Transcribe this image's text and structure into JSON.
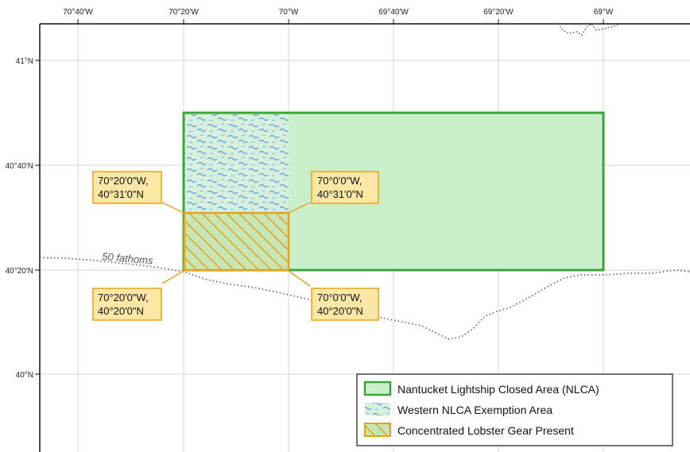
{
  "map": {
    "lon_ticks": [
      "70°40'W",
      "70°20'W",
      "70°W",
      "69°40'W",
      "69°20'W",
      "69°W"
    ],
    "lat_ticks": [
      "41°N",
      "40°40'N",
      "40°20'N",
      "40°N"
    ],
    "contour_label": "50 fathoms",
    "callouts": {
      "nw": [
        "70°20'0\"W,",
        "40°31'0\"N"
      ],
      "ne": [
        "70°0'0\"W,",
        "40°31'0\"N"
      ],
      "sw": [
        "70°20'0\"W,",
        "40°20'0\"N"
      ],
      "se": [
        "70°0'0\"W,",
        "40°20'0\"N"
      ]
    },
    "legend": {
      "items": [
        "Nantucket Lightship Closed Area (NLCA)",
        "Western NLCA Exemption Area",
        "Concentrated Lobster Gear Present"
      ]
    },
    "colors": {
      "nlca_fill": "#c9efcb",
      "nlca_stroke": "#3aa63a",
      "exemption": "#6aa6e0",
      "lobster_stroke": "#e5a21b",
      "callout_fill": "#fbe8a6",
      "callout_stroke": "#e5a21b"
    }
  }
}
